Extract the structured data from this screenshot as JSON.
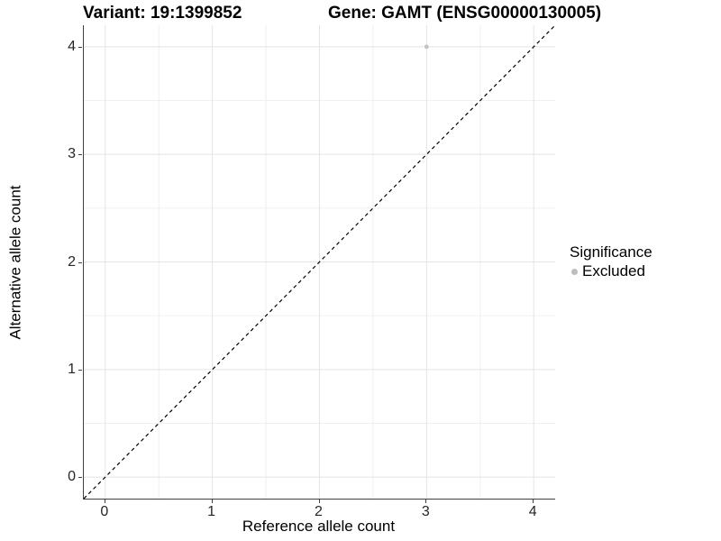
{
  "chart_data": {
    "type": "scatter",
    "title_left": "Variant: 19:1399852",
    "title_right": "Gene: GAMT (ENSG00000130005)",
    "xlabel": "Reference allele count",
    "ylabel": "Alternative allele count",
    "xlim": [
      -0.2,
      4.2
    ],
    "ylim": [
      -0.2,
      4.2
    ],
    "x_ticks": [
      0,
      1,
      2,
      3,
      4
    ],
    "y_ticks": [
      0,
      1,
      2,
      3,
      4
    ],
    "x_minor_ticks": [
      0.5,
      1.5,
      2.5,
      3.5
    ],
    "y_minor_ticks": [
      0.5,
      1.5,
      2.5,
      3.5
    ],
    "grid": "major+minor",
    "legend_position": "right",
    "legend": {
      "title": "Significance",
      "entries": [
        {
          "label": "Excluded",
          "color": "#bdbdbd"
        }
      ]
    },
    "series": [
      {
        "name": "Excluded",
        "color": "#c2c2c2",
        "marker_radius": 2.4,
        "points": [
          {
            "x": 3,
            "y": 4
          }
        ]
      }
    ],
    "identity_line": {
      "style": "dashed",
      "color": "#000000",
      "from": [
        -0.2,
        -0.2
      ],
      "to": [
        4.2,
        4.2
      ]
    },
    "colors": {
      "grid_major": "#e4e4e4",
      "grid_minor": "#f0f0f0",
      "axis_line": "#404040",
      "tick_label": "#262626",
      "background": "#ffffff"
    }
  }
}
